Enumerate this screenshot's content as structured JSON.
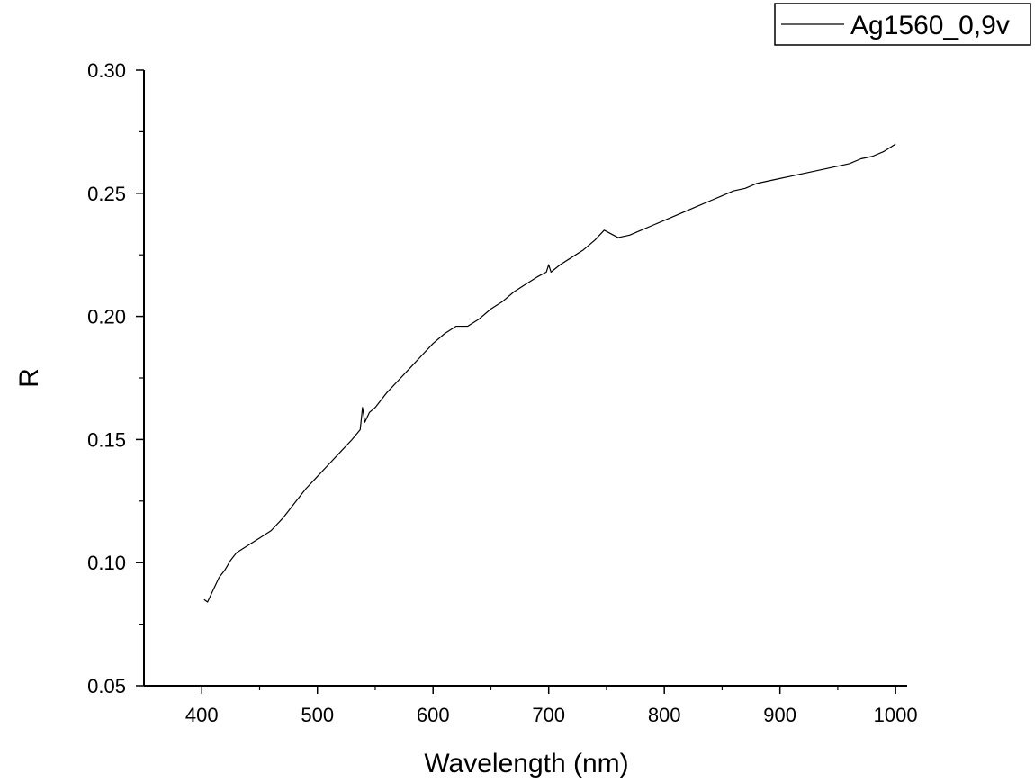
{
  "chart_data": {
    "type": "line",
    "xlabel": "Wavelength (nm)",
    "ylabel": "R",
    "xlim": [
      350,
      1010
    ],
    "ylim": [
      0.05,
      0.3
    ],
    "x_ticks": [
      400,
      500,
      600,
      700,
      800,
      900,
      1000
    ],
    "x_tick_labels": [
      "400",
      "500",
      "600",
      "700",
      "800",
      "900",
      "1000"
    ],
    "y_ticks": [
      0.05,
      0.1,
      0.15,
      0.2,
      0.25,
      0.3
    ],
    "y_tick_labels": [
      "0.05",
      "0.10",
      "0.15",
      "0.20",
      "0.25",
      "0.30"
    ],
    "grid": false,
    "legend_position": "top-right",
    "line_color": "#000000",
    "series": [
      {
        "name": "Ag1560_0,9v",
        "x": [
          402,
          405,
          410,
          415,
          420,
          425,
          430,
          440,
          450,
          460,
          470,
          480,
          490,
          500,
          510,
          520,
          530,
          537,
          539,
          541,
          545,
          550,
          560,
          570,
          580,
          590,
          600,
          610,
          620,
          630,
          640,
          650,
          660,
          670,
          680,
          690,
          698,
          700,
          702,
          710,
          720,
          730,
          740,
          748,
          752,
          760,
          770,
          780,
          790,
          800,
          810,
          820,
          830,
          840,
          850,
          860,
          870,
          880,
          890,
          900,
          910,
          920,
          930,
          940,
          950,
          960,
          970,
          980,
          990,
          1000
        ],
        "y": [
          0.085,
          0.084,
          0.089,
          0.094,
          0.097,
          0.101,
          0.104,
          0.107,
          0.11,
          0.113,
          0.118,
          0.124,
          0.13,
          0.135,
          0.14,
          0.145,
          0.15,
          0.154,
          0.163,
          0.157,
          0.161,
          0.163,
          0.169,
          0.174,
          0.179,
          0.184,
          0.189,
          0.193,
          0.196,
          0.196,
          0.199,
          0.203,
          0.206,
          0.21,
          0.213,
          0.216,
          0.218,
          0.221,
          0.218,
          0.221,
          0.224,
          0.227,
          0.231,
          0.235,
          0.234,
          0.232,
          0.233,
          0.235,
          0.237,
          0.239,
          0.241,
          0.243,
          0.245,
          0.247,
          0.249,
          0.251,
          0.252,
          0.254,
          0.255,
          0.256,
          0.257,
          0.258,
          0.259,
          0.26,
          0.261,
          0.262,
          0.264,
          0.265,
          0.267,
          0.27
        ]
      }
    ]
  }
}
